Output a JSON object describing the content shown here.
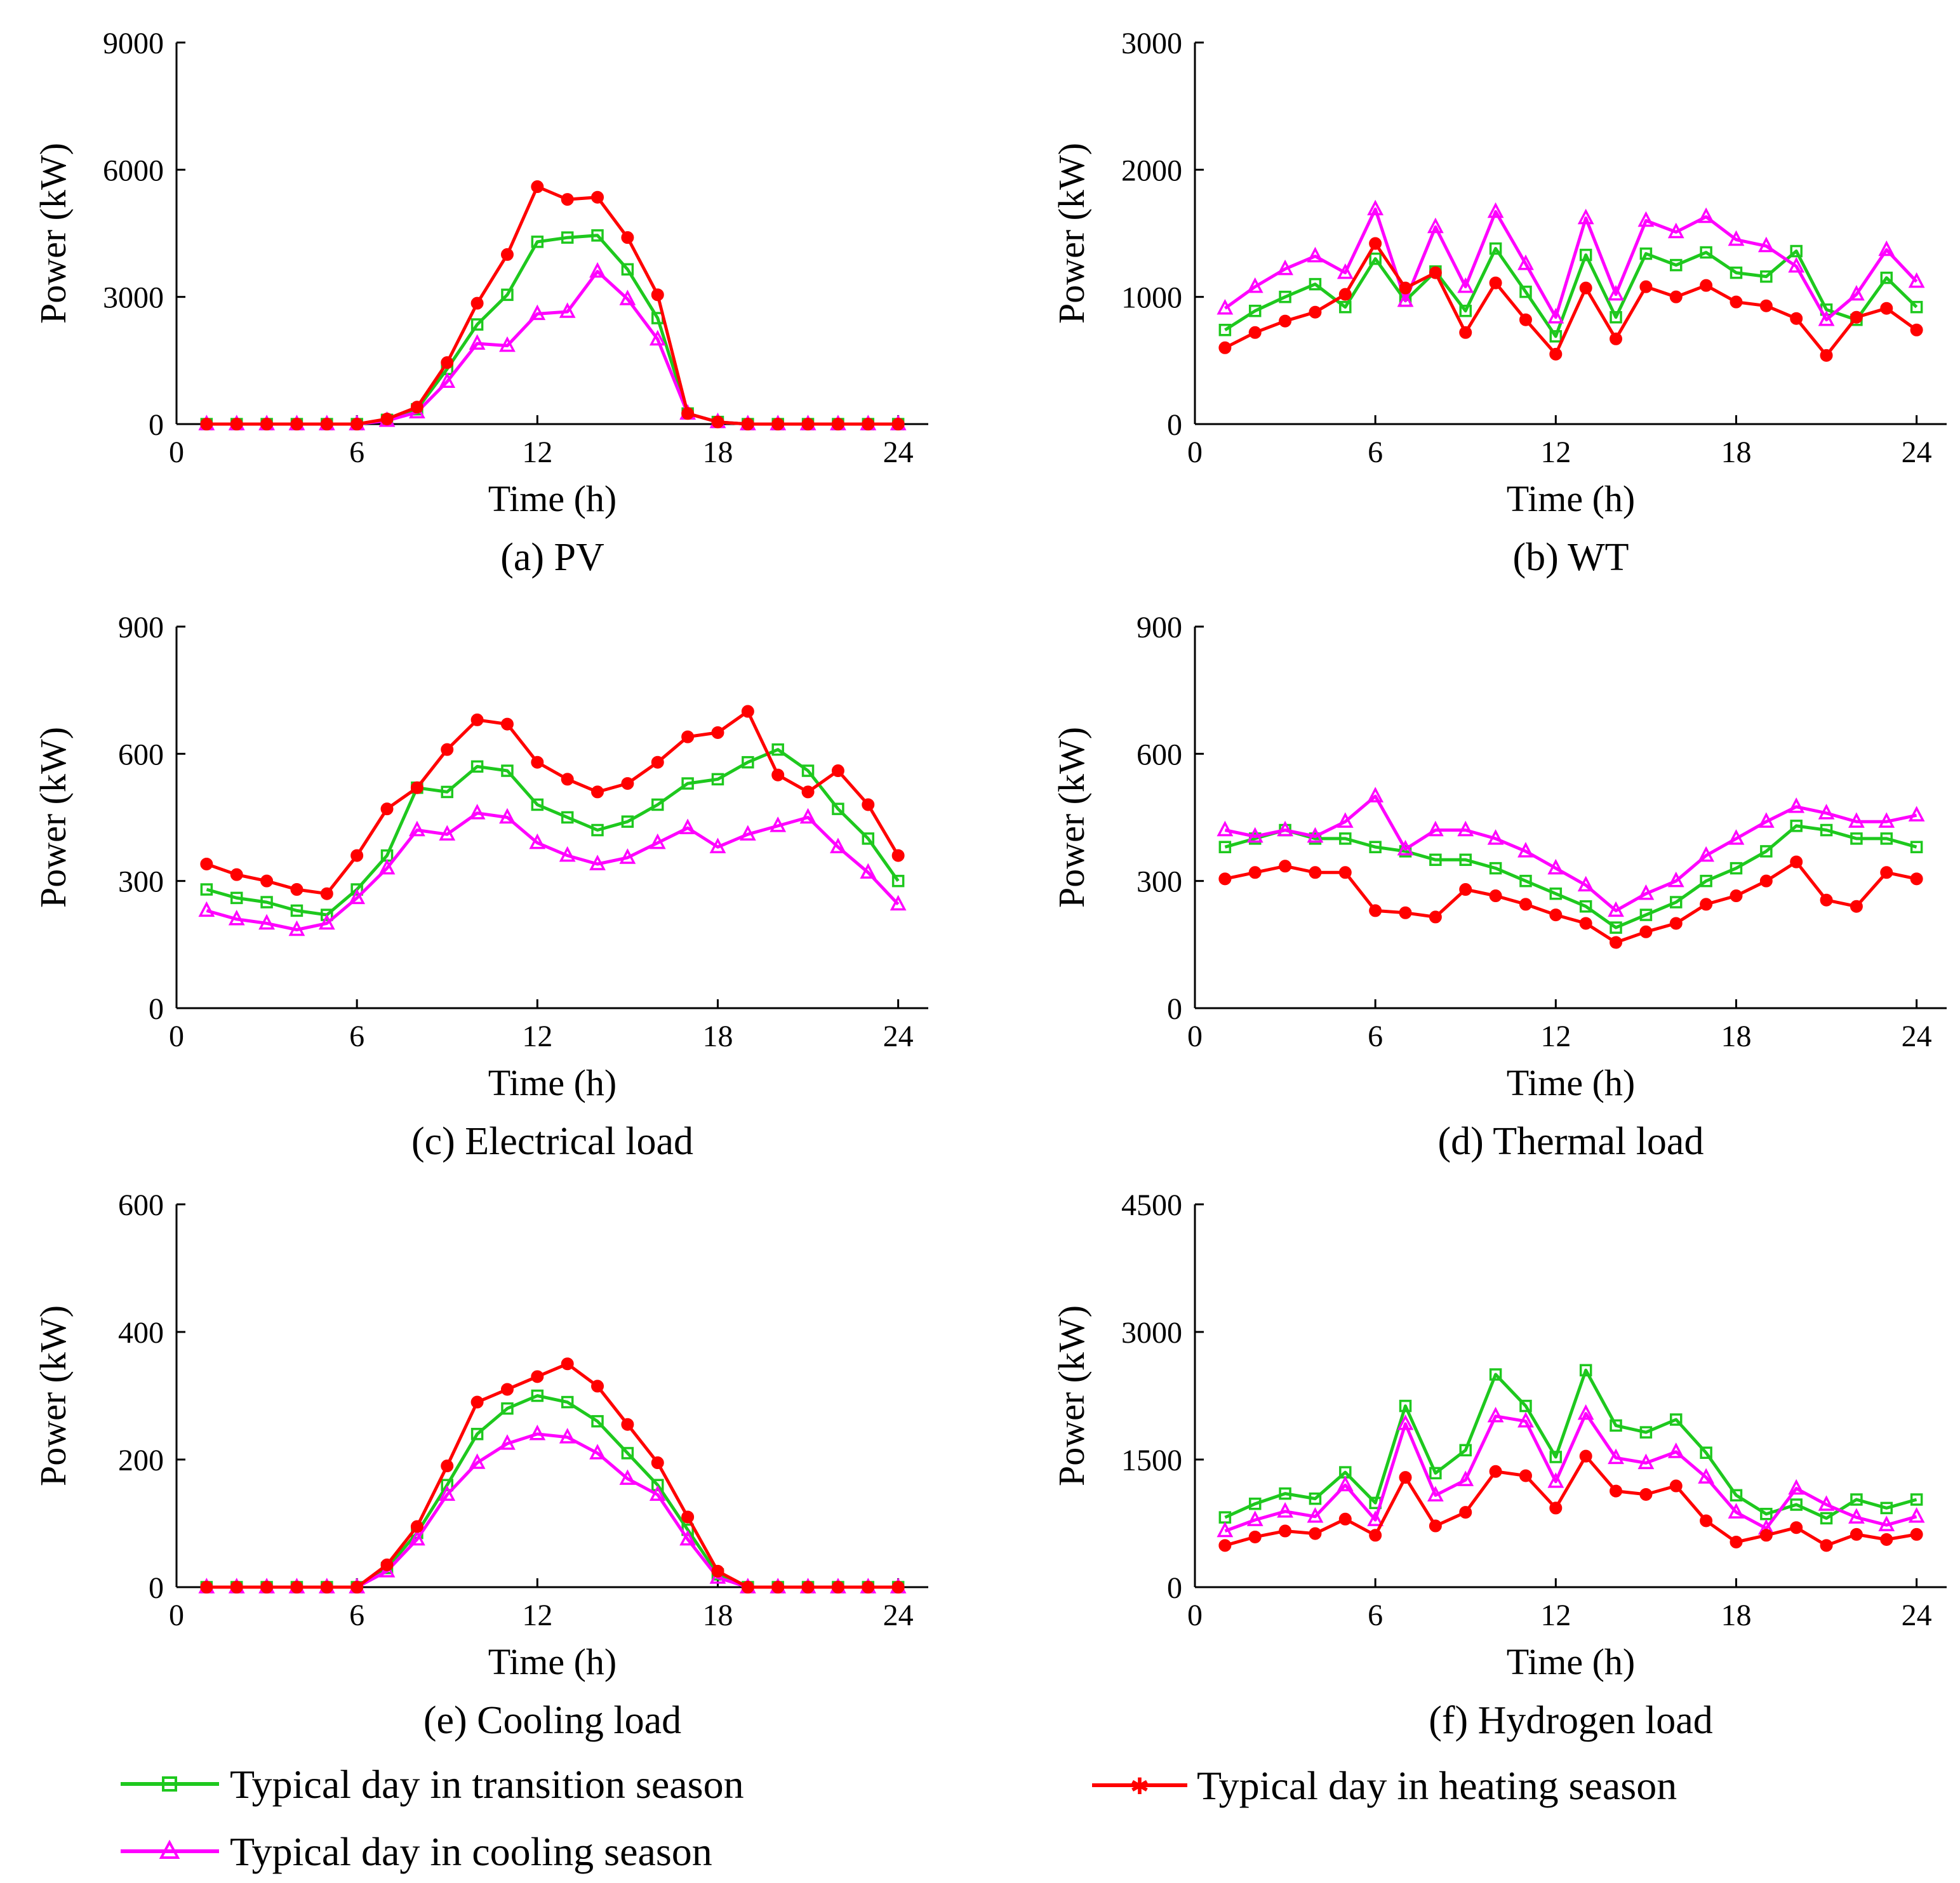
{
  "colors": {
    "transition": "#1ec81e",
    "cooling": "#ff00ff",
    "heating": "#ff0000",
    "axis": "#000000"
  },
  "legend": {
    "transition": "Typical day in transition season",
    "cooling": "Typical day in cooling season",
    "heating": "Typical day in heating season"
  },
  "chart_data": [
    {
      "type": "line",
      "caption": "(a) PV",
      "xlabel": "Time (h)",
      "ylabel": "Power (kW)",
      "xlim": [
        0,
        25
      ],
      "ylim": [
        0,
        9000
      ],
      "xticks": [
        "0",
        "6",
        "12",
        "18",
        "24"
      ],
      "yticks": [
        "0",
        "3000",
        "6000",
        "9000"
      ],
      "x": [
        1,
        2,
        3,
        4,
        5,
        6,
        7,
        8,
        9,
        10,
        11,
        12,
        13,
        14,
        15,
        16,
        17,
        18,
        19,
        20,
        21,
        22,
        23,
        24
      ],
      "series": [
        {
          "key": "transition",
          "name": "Typical day in transition season",
          "values": [
            0,
            0,
            0,
            0,
            0,
            0,
            100,
            350,
            1300,
            2350,
            3050,
            4300,
            4400,
            4450,
            3650,
            2500,
            250,
            50,
            0,
            0,
            0,
            0,
            0,
            0
          ]
        },
        {
          "key": "cooling",
          "name": "Typical day in cooling season",
          "values": [
            0,
            0,
            0,
            0,
            0,
            0,
            80,
            280,
            1000,
            1900,
            1850,
            2600,
            2650,
            3600,
            2950,
            2000,
            250,
            50,
            0,
            0,
            0,
            0,
            0,
            0
          ]
        },
        {
          "key": "heating",
          "name": "Typical day in heating season",
          "values": [
            0,
            0,
            0,
            0,
            0,
            0,
            120,
            400,
            1450,
            2850,
            4000,
            5600,
            5300,
            5350,
            4400,
            3050,
            250,
            50,
            0,
            0,
            0,
            0,
            0,
            0
          ]
        }
      ]
    },
    {
      "type": "line",
      "caption": "(b) WT",
      "xlabel": "Time (h)",
      "ylabel": "Power (kW)",
      "xlim": [
        0,
        25
      ],
      "ylim": [
        0,
        3000
      ],
      "xticks": [
        "0",
        "6",
        "12",
        "18",
        "24"
      ],
      "yticks": [
        "0",
        "1000",
        "2000",
        "3000"
      ],
      "x": [
        1,
        2,
        3,
        4,
        5,
        6,
        7,
        8,
        9,
        10,
        11,
        12,
        13,
        14,
        15,
        16,
        17,
        18,
        19,
        20,
        21,
        22,
        23,
        24
      ],
      "series": [
        {
          "key": "transition",
          "name": "Typical day in transition season",
          "values": [
            740,
            890,
            1000,
            1100,
            920,
            1300,
            970,
            1200,
            890,
            1380,
            1040,
            690,
            1330,
            840,
            1340,
            1250,
            1350,
            1190,
            1160,
            1360,
            900,
            820,
            1150,
            920
          ]
        },
        {
          "key": "cooling",
          "name": "Typical day in cooling season",
          "values": [
            910,
            1080,
            1220,
            1320,
            1190,
            1690,
            970,
            1550,
            1080,
            1670,
            1260,
            840,
            1620,
            1020,
            1600,
            1510,
            1630,
            1450,
            1400,
            1240,
            820,
            1020,
            1370,
            1120
          ]
        },
        {
          "key": "heating",
          "name": "Typical day in heating season",
          "values": [
            600,
            720,
            810,
            880,
            1020,
            1420,
            1070,
            1190,
            720,
            1110,
            820,
            550,
            1070,
            670,
            1080,
            1000,
            1090,
            960,
            930,
            830,
            540,
            840,
            910,
            740
          ]
        }
      ]
    },
    {
      "type": "line",
      "caption": "(c) Electrical load",
      "xlabel": "Time (h)",
      "ylabel": "Power (kW)",
      "xlim": [
        0,
        25
      ],
      "ylim": [
        0,
        900
      ],
      "xticks": [
        "0",
        "6",
        "12",
        "18",
        "24"
      ],
      "yticks": [
        "0",
        "300",
        "600",
        "900"
      ],
      "x": [
        1,
        2,
        3,
        4,
        5,
        6,
        7,
        8,
        9,
        10,
        11,
        12,
        13,
        14,
        15,
        16,
        17,
        18,
        19,
        20,
        21,
        22,
        23,
        24
      ],
      "series": [
        {
          "key": "transition",
          "name": "Typical day in transition season",
          "values": [
            280,
            260,
            250,
            230,
            220,
            280,
            360,
            520,
            510,
            570,
            560,
            480,
            450,
            420,
            440,
            480,
            530,
            540,
            580,
            610,
            560,
            470,
            400,
            300
          ]
        },
        {
          "key": "cooling",
          "name": "Typical day in cooling season",
          "values": [
            230,
            210,
            200,
            185,
            200,
            260,
            330,
            420,
            410,
            460,
            450,
            390,
            360,
            340,
            355,
            390,
            425,
            380,
            410,
            430,
            450,
            380,
            320,
            245
          ]
        },
        {
          "key": "heating",
          "name": "Typical day in heating season",
          "values": [
            340,
            315,
            300,
            280,
            270,
            360,
            470,
            520,
            610,
            680,
            670,
            580,
            540,
            510,
            530,
            580,
            640,
            650,
            700,
            550,
            510,
            560,
            480,
            360
          ]
        }
      ]
    },
    {
      "type": "line",
      "caption": "(d) Thermal load",
      "xlabel": "Time (h)",
      "ylabel": "Power (kW)",
      "xlim": [
        0,
        25
      ],
      "ylim": [
        0,
        900
      ],
      "xticks": [
        "0",
        "6",
        "12",
        "18",
        "24"
      ],
      "yticks": [
        "0",
        "300",
        "600",
        "900"
      ],
      "x": [
        1,
        2,
        3,
        4,
        5,
        6,
        7,
        8,
        9,
        10,
        11,
        12,
        13,
        14,
        15,
        16,
        17,
        18,
        19,
        20,
        21,
        22,
        23,
        24
      ],
      "series": [
        {
          "key": "transition",
          "name": "Typical day in transition season",
          "values": [
            380,
            400,
            420,
            400,
            400,
            380,
            370,
            350,
            350,
            330,
            300,
            270,
            240,
            190,
            220,
            250,
            300,
            330,
            370,
            430,
            420,
            400,
            400,
            380
          ]
        },
        {
          "key": "cooling",
          "name": "Typical day in cooling season",
          "values": [
            420,
            405,
            420,
            405,
            440,
            500,
            375,
            420,
            420,
            400,
            370,
            330,
            290,
            230,
            270,
            300,
            360,
            400,
            440,
            475,
            460,
            440,
            440,
            455
          ]
        },
        {
          "key": "heating",
          "name": "Typical day in heating season",
          "values": [
            305,
            320,
            335,
            320,
            320,
            230,
            225,
            215,
            280,
            265,
            245,
            220,
            200,
            155,
            180,
            200,
            245,
            265,
            300,
            345,
            255,
            240,
            320,
            305
          ]
        }
      ]
    },
    {
      "type": "line",
      "caption": "(e) Cooling load",
      "xlabel": "Time (h)",
      "ylabel": "Power (kW)",
      "xlim": [
        0,
        25
      ],
      "ylim": [
        0,
        600
      ],
      "xticks": [
        "0",
        "6",
        "12",
        "18",
        "24"
      ],
      "yticks": [
        "0",
        "200",
        "400",
        "600"
      ],
      "x": [
        1,
        2,
        3,
        4,
        5,
        6,
        7,
        8,
        9,
        10,
        11,
        12,
        13,
        14,
        15,
        16,
        17,
        18,
        19,
        20,
        21,
        22,
        23,
        24
      ],
      "series": [
        {
          "key": "transition",
          "name": "Typical day in transition season",
          "values": [
            0,
            0,
            0,
            0,
            0,
            0,
            30,
            85,
            160,
            240,
            280,
            300,
            290,
            260,
            210,
            160,
            90,
            20,
            0,
            0,
            0,
            0,
            0,
            0
          ]
        },
        {
          "key": "cooling",
          "name": "Typical day in cooling season",
          "values": [
            0,
            0,
            0,
            0,
            0,
            0,
            25,
            75,
            145,
            195,
            225,
            240,
            235,
            210,
            170,
            145,
            75,
            15,
            0,
            0,
            0,
            0,
            0,
            0
          ]
        },
        {
          "key": "heating",
          "name": "Typical day in heating season",
          "values": [
            0,
            0,
            0,
            0,
            0,
            0,
            35,
            95,
            190,
            290,
            310,
            330,
            350,
            315,
            255,
            195,
            110,
            25,
            0,
            0,
            0,
            0,
            0,
            0
          ]
        }
      ]
    },
    {
      "type": "line",
      "caption": "(f) Hydrogen load",
      "xlabel": "Time (h)",
      "ylabel": "Power (kW)",
      "xlim": [
        0,
        25
      ],
      "ylim": [
        0,
        4500
      ],
      "xticks": [
        "0",
        "6",
        "12",
        "18",
        "24"
      ],
      "yticks": [
        "0",
        "1500",
        "3000",
        "4500"
      ],
      "x": [
        1,
        2,
        3,
        4,
        5,
        6,
        7,
        8,
        9,
        10,
        11,
        12,
        13,
        14,
        15,
        16,
        17,
        18,
        19,
        20,
        21,
        22,
        23,
        24
      ],
      "series": [
        {
          "key": "transition",
          "name": "Typical day in transition season",
          "values": [
            820,
            980,
            1100,
            1040,
            1350,
            990,
            2130,
            1340,
            1610,
            2500,
            2130,
            1530,
            2550,
            1900,
            1820,
            1970,
            1580,
            1080,
            860,
            970,
            810,
            1030,
            930,
            1030
          ]
        },
        {
          "key": "cooling",
          "name": "Typical day in cooling season",
          "values": [
            660,
            790,
            890,
            830,
            1200,
            790,
            1920,
            1080,
            1260,
            2010,
            1950,
            1240,
            2040,
            1520,
            1460,
            1590,
            1290,
            880,
            690,
            1160,
            970,
            820,
            730,
            830
          ]
        },
        {
          "key": "heating",
          "name": "Typical day in heating season",
          "values": [
            490,
            590,
            660,
            630,
            800,
            610,
            1290,
            720,
            880,
            1360,
            1310,
            930,
            1540,
            1130,
            1090,
            1190,
            780,
            530,
            610,
            700,
            490,
            620,
            560,
            620
          ]
        }
      ]
    }
  ]
}
